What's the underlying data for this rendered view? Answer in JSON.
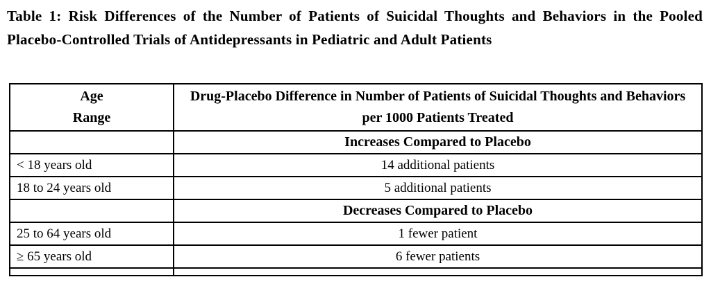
{
  "document": {
    "title": "Table 1: Risk Differences of the Number of Patients of Suicidal Thoughts and Behaviors in the Pooled Placebo-Controlled Trials of Antidepressants in Pediatric and Adult Patients"
  },
  "table": {
    "header": {
      "col1": "Age Range",
      "col1_line1": "Age",
      "col1_line2": "Range",
      "col2": "Drug-Placebo Difference in Number of Patients of Suicidal Thoughts and Behaviors per 1000 Patients Treated"
    },
    "sections": {
      "increase": {
        "label": "Increases Compared to Placebo",
        "rows": [
          {
            "age": "< 18 years old",
            "value": "14 additional patients"
          },
          {
            "age": "18 to 24 years old",
            "value": "5 additional patients"
          }
        ]
      },
      "decrease": {
        "label": "Decreases Compared to Placebo",
        "rows": [
          {
            "age": "25 to 64 years old",
            "value": "1 fewer patient"
          },
          {
            "age": "≥ 65 years old",
            "value": "6 fewer patients"
          }
        ]
      }
    }
  }
}
